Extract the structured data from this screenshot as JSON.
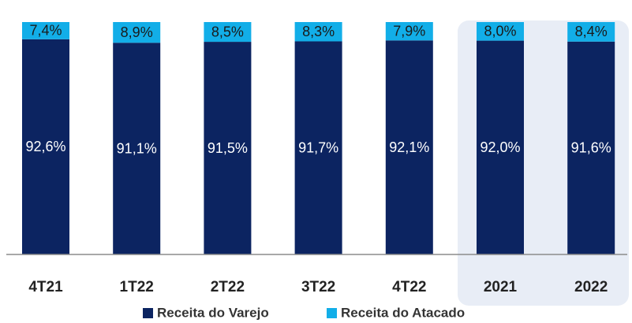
{
  "chart_data": {
    "type": "stacked_bar",
    "categories": [
      "4T21",
      "1T22",
      "2T22",
      "3T22",
      "4T22",
      "2021",
      "2022"
    ],
    "series": [
      {
        "name": "Receita do Varejo",
        "color": "#0c2461",
        "values": [
          92.6,
          91.1,
          91.5,
          91.7,
          92.1,
          92.0,
          91.6
        ],
        "value_labels": [
          "92,6%",
          "91,1%",
          "91,5%",
          "91,7%",
          "92,1%",
          "92,0%",
          "91,6%"
        ]
      },
      {
        "name": "Receita do Atacado",
        "color": "#12aee8",
        "values": [
          7.4,
          8.9,
          8.5,
          8.3,
          7.9,
          8.0,
          8.4
        ],
        "value_labels": [
          "7,4%",
          "8,9%",
          "8,5%",
          "8,3%",
          "7,9%",
          "8,0%",
          "8,4%"
        ]
      }
    ],
    "ylim": [
      0,
      100
    ],
    "legend": "bottom"
  }
}
